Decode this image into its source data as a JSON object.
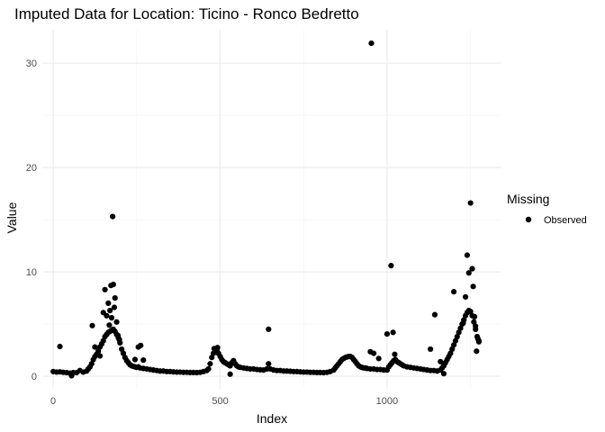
{
  "chart_data": {
    "type": "scatter",
    "title": "Imputed Data for Location: Ticino - Ronco Bedretto",
    "xlabel": "Index",
    "ylabel": "Value",
    "xlim": [
      -30,
      1340
    ],
    "ylim": [
      -1.2,
      33.2
    ],
    "x_ticks": [
      0,
      500,
      1000
    ],
    "x_tick_labels": [
      "0",
      "500",
      "1000"
    ],
    "y_ticks": [
      0,
      10,
      20,
      30
    ],
    "y_tick_labels": [
      "0",
      "10",
      "20",
      "30"
    ],
    "x_minor": [
      250,
      750,
      1250
    ],
    "y_minor": [
      5,
      15,
      25
    ],
    "grid": true,
    "legend": {
      "title": "Missing",
      "position": "right",
      "entries": [
        {
          "label": "Observed",
          "color": "#000000"
        }
      ]
    },
    "series": [
      {
        "name": "Observed",
        "color": "#000000",
        "points": [
          [
            0,
            0.45
          ],
          [
            10,
            0.4
          ],
          [
            20,
            0.42
          ],
          [
            30,
            0.38
          ],
          [
            40,
            0.35
          ],
          [
            50,
            0.3
          ],
          [
            55,
            0.05
          ],
          [
            60,
            0.35
          ],
          [
            70,
            0.35
          ],
          [
            80,
            0.55
          ],
          [
            90,
            0.4
          ],
          [
            100,
            0.5
          ],
          [
            105,
            0.7
          ],
          [
            110,
            0.9
          ],
          [
            115,
            1.2
          ],
          [
            120,
            1.6
          ],
          [
            125,
            1.9
          ],
          [
            130,
            2.1
          ],
          [
            135,
            2.4
          ],
          [
            140,
            2.8
          ],
          [
            145,
            3.1
          ],
          [
            150,
            3.4
          ],
          [
            155,
            3.8
          ],
          [
            160,
            4.0
          ],
          [
            165,
            4.2
          ],
          [
            170,
            4.3
          ],
          [
            175,
            4.4
          ],
          [
            180,
            4.5
          ],
          [
            185,
            4.3
          ],
          [
            190,
            4.0
          ],
          [
            195,
            3.7
          ],
          [
            200,
            3.2
          ],
          [
            205,
            2.6
          ],
          [
            210,
            2.2
          ],
          [
            215,
            1.8
          ],
          [
            220,
            1.5
          ],
          [
            225,
            1.3
          ],
          [
            230,
            1.1
          ],
          [
            235,
            1.0
          ],
          [
            240,
            0.95
          ],
          [
            245,
            0.9
          ],
          [
            250,
            0.85
          ],
          [
            255,
            0.9
          ],
          [
            260,
            0.8
          ],
          [
            270,
            0.75
          ],
          [
            280,
            0.7
          ],
          [
            290,
            0.65
          ],
          [
            300,
            0.6
          ],
          [
            310,
            0.55
          ],
          [
            320,
            0.5
          ],
          [
            330,
            0.5
          ],
          [
            340,
            0.45
          ],
          [
            350,
            0.45
          ],
          [
            360,
            0.42
          ],
          [
            370,
            0.4
          ],
          [
            380,
            0.4
          ],
          [
            390,
            0.38
          ],
          [
            400,
            0.38
          ],
          [
            410,
            0.36
          ],
          [
            420,
            0.36
          ],
          [
            430,
            0.35
          ],
          [
            440,
            0.38
          ],
          [
            450,
            0.45
          ],
          [
            460,
            0.55
          ],
          [
            465,
            0.7
          ],
          [
            470,
            1.2
          ],
          [
            475,
            1.8
          ],
          [
            480,
            2.2
          ],
          [
            485,
            2.4
          ],
          [
            490,
            2.5
          ],
          [
            495,
            2.2
          ],
          [
            500,
            1.9
          ],
          [
            505,
            1.6
          ],
          [
            510,
            1.4
          ],
          [
            515,
            1.3
          ],
          [
            520,
            1.2
          ],
          [
            525,
            1.1
          ],
          [
            530,
            1.0
          ],
          [
            535,
            1.3
          ],
          [
            540,
            1.5
          ],
          [
            545,
            1.2
          ],
          [
            550,
            1.0
          ],
          [
            555,
            0.9
          ],
          [
            560,
            0.85
          ],
          [
            570,
            0.8
          ],
          [
            580,
            0.75
          ],
          [
            590,
            0.7
          ],
          [
            600,
            0.7
          ],
          [
            610,
            0.65
          ],
          [
            620,
            0.62
          ],
          [
            630,
            0.6
          ],
          [
            640,
            0.7
          ],
          [
            645,
            1.2
          ],
          [
            650,
            0.7
          ],
          [
            660,
            0.6
          ],
          [
            670,
            0.55
          ],
          [
            680,
            0.55
          ],
          [
            690,
            0.5
          ],
          [
            700,
            0.5
          ],
          [
            710,
            0.48
          ],
          [
            720,
            0.45
          ],
          [
            730,
            0.45
          ],
          [
            740,
            0.42
          ],
          [
            750,
            0.4
          ],
          [
            760,
            0.4
          ],
          [
            770,
            0.38
          ],
          [
            780,
            0.38
          ],
          [
            790,
            0.36
          ],
          [
            800,
            0.36
          ],
          [
            810,
            0.35
          ],
          [
            820,
            0.38
          ],
          [
            830,
            0.45
          ],
          [
            840,
            0.6
          ],
          [
            845,
            0.8
          ],
          [
            850,
            1.0
          ],
          [
            855,
            1.2
          ],
          [
            860,
            1.4
          ],
          [
            865,
            1.6
          ],
          [
            870,
            1.7
          ],
          [
            875,
            1.8
          ],
          [
            880,
            1.85
          ],
          [
            885,
            1.9
          ],
          [
            890,
            1.9
          ],
          [
            895,
            1.8
          ],
          [
            900,
            1.6
          ],
          [
            905,
            1.4
          ],
          [
            910,
            1.2
          ],
          [
            915,
            1.0
          ],
          [
            920,
            0.9
          ],
          [
            925,
            0.85
          ],
          [
            930,
            0.8
          ],
          [
            935,
            0.8
          ],
          [
            940,
            0.75
          ],
          [
            950,
            0.7
          ],
          [
            960,
            0.7
          ],
          [
            970,
            0.65
          ],
          [
            980,
            0.65
          ],
          [
            990,
            0.6
          ],
          [
            1000,
            0.6
          ],
          [
            1005,
            0.9
          ],
          [
            1010,
            1.1
          ],
          [
            1015,
            1.3
          ],
          [
            1020,
            1.5
          ],
          [
            1025,
            1.6
          ],
          [
            1030,
            1.4
          ],
          [
            1035,
            1.3
          ],
          [
            1040,
            1.2
          ],
          [
            1045,
            1.1
          ],
          [
            1050,
            1.0
          ],
          [
            1060,
            0.9
          ],
          [
            1070,
            0.85
          ],
          [
            1080,
            0.8
          ],
          [
            1090,
            0.75
          ],
          [
            1100,
            0.7
          ],
          [
            1110,
            0.65
          ],
          [
            1120,
            0.6
          ],
          [
            1130,
            0.55
          ],
          [
            1140,
            0.55
          ],
          [
            1150,
            0.5
          ],
          [
            1160,
            0.6
          ],
          [
            1165,
            0.8
          ],
          [
            1170,
            1.0
          ],
          [
            1175,
            1.3
          ],
          [
            1180,
            1.6
          ],
          [
            1185,
            1.9
          ],
          [
            1190,
            2.2
          ],
          [
            1195,
            2.6
          ],
          [
            1200,
            3.0
          ],
          [
            1205,
            3.4
          ],
          [
            1210,
            3.8
          ],
          [
            1215,
            4.2
          ],
          [
            1220,
            4.6
          ],
          [
            1225,
            5.0
          ],
          [
            1230,
            5.4
          ],
          [
            1235,
            5.8
          ],
          [
            1240,
            6.1
          ],
          [
            1245,
            6.3
          ],
          [
            1250,
            6.2
          ],
          [
            1255,
            5.8
          ],
          [
            1260,
            5.2
          ],
          [
            1265,
            4.5
          ],
          [
            1270,
            3.8
          ],
          [
            1275,
            3.4
          ],
          [
            20,
            2.85
          ],
          [
            117,
            4.85
          ],
          [
            125,
            2.8
          ],
          [
            140,
            1.95
          ],
          [
            150,
            6.1
          ],
          [
            155,
            8.3
          ],
          [
            160,
            5.8
          ],
          [
            165,
            7.0
          ],
          [
            168,
            4.9
          ],
          [
            170,
            6.3
          ],
          [
            173,
            8.7
          ],
          [
            175,
            5.6
          ],
          [
            178,
            15.3
          ],
          [
            180,
            8.8
          ],
          [
            183,
            6.6
          ],
          [
            185,
            7.5
          ],
          [
            190,
            5.2
          ],
          [
            194,
            3.9
          ],
          [
            198,
            3.5
          ],
          [
            245,
            1.6
          ],
          [
            255,
            2.8
          ],
          [
            262,
            2.95
          ],
          [
            270,
            1.55
          ],
          [
            482,
            2.65
          ],
          [
            492,
            2.75
          ],
          [
            530,
            0.2
          ],
          [
            645,
            4.5
          ],
          [
            953,
            31.9
          ],
          [
            950,
            2.35
          ],
          [
            960,
            2.2
          ],
          [
            975,
            1.7
          ],
          [
            1000,
            4.05
          ],
          [
            1012,
            10.6
          ],
          [
            1018,
            4.2
          ],
          [
            1023,
            2.1
          ],
          [
            1130,
            2.6
          ],
          [
            1143,
            5.9
          ],
          [
            1160,
            1.4
          ],
          [
            1170,
            0.25
          ],
          [
            1200,
            8.1
          ],
          [
            1228,
            5.1
          ],
          [
            1235,
            7.6
          ],
          [
            1240,
            11.6
          ],
          [
            1245,
            9.9
          ],
          [
            1250,
            16.6
          ],
          [
            1255,
            10.3
          ],
          [
            1258,
            8.6
          ],
          [
            1262,
            5.7
          ],
          [
            1265,
            4.8
          ],
          [
            1268,
            2.4
          ],
          [
            1272,
            3.6
          ],
          [
            1275,
            3.3
          ]
        ]
      }
    ]
  }
}
